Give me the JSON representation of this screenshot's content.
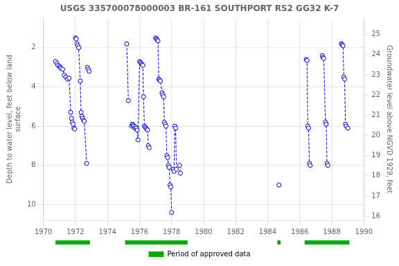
{
  "chart_data": {
    "type": "line",
    "title": "USGS 335700078000003 BR-161 SOUTHPORT RS2 GG32 K-7",
    "ylabel": "Depth to water level, feet below land\nsurface",
    "y2label": "Groundwater level above NGVD 1929, feet",
    "xlim": [
      1970,
      1990
    ],
    "xticks": [
      1970,
      1972,
      1974,
      1976,
      1978,
      1980,
      1982,
      1984,
      1986,
      1988,
      1990
    ],
    "ylim": [
      10.8,
      0.5
    ],
    "yticks": [
      2,
      4,
      6,
      8,
      10
    ],
    "y2lim": [
      15.8,
      25.8
    ],
    "y2ticks": [
      16,
      17,
      18,
      19,
      20,
      21,
      22,
      23,
      24,
      25
    ],
    "grid": true,
    "legend": "bottom",
    "color": "#0000CC",
    "marker": "open_circle",
    "line_style": "dashed",
    "series": [
      {
        "x": [
          1970.75,
          1970.85,
          1970.9,
          1971.0,
          1971.05,
          1971.1,
          1971.2,
          1971.3,
          1971.4,
          1971.5,
          1971.6,
          1971.7,
          1971.75,
          1971.8,
          1971.85,
          1971.9,
          1971.95
        ],
        "values": [
          2.7,
          2.8,
          2.9,
          2.95,
          3.0,
          3.05,
          3.1,
          3.4,
          3.5,
          3.6,
          3.55,
          5.3,
          5.6,
          5.8,
          5.9,
          6.1,
          6.15
        ]
      },
      {
        "x": [
          1972.0,
          1972.05,
          1972.1,
          1972.15,
          1972.2,
          1972.3,
          1972.35,
          1972.4,
          1972.45,
          1972.5,
          1972.55,
          1972.7
        ],
        "values": [
          1.5,
          1.55,
          1.8,
          1.9,
          2.0,
          3.7,
          5.3,
          5.5,
          5.6,
          5.7,
          5.75,
          7.9
        ]
      },
      {
        "x": [
          1972.75,
          1972.8,
          1972.85
        ],
        "values": [
          3.0,
          3.1,
          3.2
        ]
      },
      {
        "x": [
          1975.2,
          1975.3
        ],
        "values": [
          1.8,
          4.7
        ]
      },
      {
        "x": [
          1975.5,
          1975.55,
          1975.6,
          1975.65,
          1975.7,
          1975.75,
          1975.8,
          1975.85,
          1975.9,
          1976.0,
          1976.05,
          1976.1,
          1976.15,
          1976.2,
          1976.25,
          1976.3,
          1976.35,
          1976.4,
          1976.45,
          1976.5,
          1976.55,
          1976.6
        ],
        "values": [
          6.0,
          5.9,
          5.95,
          6.0,
          6.1,
          6.05,
          6.1,
          6.2,
          6.7,
          2.7,
          2.75,
          2.8,
          2.85,
          2.9,
          4.5,
          6.0,
          6.05,
          6.1,
          6.15,
          6.2,
          7.0,
          7.1
        ]
      },
      {
        "x": [
          1977.0,
          1977.05,
          1977.1,
          1977.15,
          1977.2,
          1977.25,
          1977.3,
          1977.4,
          1977.45,
          1977.5,
          1977.55,
          1977.6,
          1977.65,
          1977.7,
          1977.75,
          1977.8,
          1977.85,
          1977.9,
          1977.95,
          1978.0
        ],
        "values": [
          1.5,
          1.55,
          1.6,
          1.65,
          3.6,
          3.65,
          3.7,
          4.3,
          4.4,
          4.5,
          5.8,
          5.9,
          6.0,
          7.5,
          7.6,
          8.0,
          8.1,
          9.0,
          9.1,
          10.4
        ]
      },
      {
        "x": [
          1978.1,
          1978.15,
          1978.2,
          1978.25,
          1978.3
        ],
        "values": [
          8.2,
          8.3,
          6.0,
          6.1,
          8.2
        ]
      },
      {
        "x": [
          1978.5,
          1978.55
        ],
        "values": [
          8.0,
          8.4
        ]
      },
      {
        "x": [
          1984.7
        ],
        "values": [
          9.0
        ]
      },
      {
        "x": [
          1986.4,
          1986.45,
          1986.5,
          1986.55,
          1986.6,
          1986.65
        ],
        "values": [
          2.6,
          2.65,
          6.0,
          6.1,
          7.9,
          8.0
        ]
      },
      {
        "x": [
          1987.4,
          1987.45,
          1987.5,
          1987.6,
          1987.65,
          1987.7,
          1987.75
        ],
        "values": [
          2.4,
          2.5,
          2.55,
          5.8,
          5.9,
          7.9,
          8.0
        ]
      },
      {
        "x": [
          1988.6,
          1988.65,
          1988.7,
          1988.75,
          1988.8,
          1988.85,
          1988.9,
          1989.0
        ],
        "values": [
          1.8,
          1.85,
          1.9,
          3.5,
          3.6,
          5.9,
          6.0,
          6.1
        ]
      }
    ],
    "approved_periods": [
      [
        1970.75,
        1972.9
      ],
      [
        1975.1,
        1979.0
      ],
      [
        1984.6,
        1984.8
      ],
      [
        1986.3,
        1989.1
      ]
    ],
    "approved_label": "Period of approved data",
    "approved_color": "#00AA00"
  }
}
